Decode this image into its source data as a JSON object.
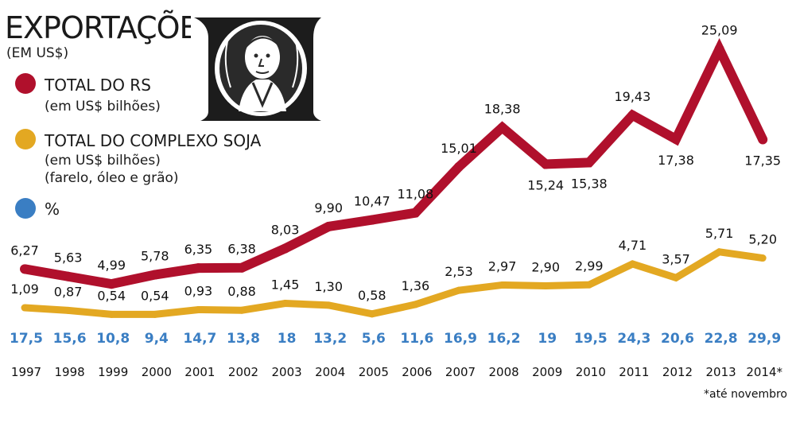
{
  "header": {
    "title": "EXPORTAÇÕES",
    "subtitle": "(EM US$)"
  },
  "legend": [
    {
      "label": "TOTAL DO RS",
      "sub1": "(em US$ bilhões)",
      "sub2": "",
      "color": "#b0102c"
    },
    {
      "label": "TOTAL DO COMPLEXO SOJA",
      "sub1": "(em US$ bilhões)",
      "sub2": "(farelo, óleo e grão)",
      "color": "#e3a822"
    },
    {
      "label": "%",
      "sub1": "",
      "sub2": "",
      "color": "#3a7ec3"
    }
  ],
  "illustration": "dollar-bill-portrait",
  "footnote": "*até novembro",
  "chart_data": {
    "type": "line",
    "categories": [
      "1997",
      "1998",
      "1999",
      "2000",
      "2001",
      "2002",
      "2003",
      "2004",
      "2005",
      "2006",
      "2007",
      "2008",
      "2009",
      "2010",
      "2011",
      "2012",
      "2013",
      "2014*"
    ],
    "series": [
      {
        "name": "TOTAL DO RS",
        "color": "#b0102c",
        "values": [
          6.27,
          5.63,
          4.99,
          5.78,
          6.35,
          6.38,
          8.03,
          9.9,
          10.47,
          11.08,
          15.01,
          18.38,
          15.24,
          15.38,
          19.43,
          17.38,
          25.09,
          17.35
        ],
        "labels": [
          "6,27",
          "5,63",
          "4,99",
          "5,78",
          "6,35",
          "6,38",
          "8,03",
          "9,90",
          "10,47",
          "11,08",
          "15,01",
          "18,38",
          "15,24",
          "15,38",
          "19,43",
          "17,38",
          "25,09",
          "17,35"
        ]
      },
      {
        "name": "TOTAL DO COMPLEXO SOJA",
        "color": "#e3a822",
        "values": [
          1.09,
          0.87,
          0.54,
          0.54,
          0.93,
          0.88,
          1.45,
          1.3,
          0.58,
          1.36,
          2.53,
          2.97,
          2.9,
          2.99,
          4.71,
          3.57,
          5.71,
          5.2
        ],
        "labels": [
          "1,09",
          "0,87",
          "0,54",
          "0,54",
          "0,93",
          "0,88",
          "1,45",
          "1,30",
          "0,58",
          "1,36",
          "2,53",
          "2,97",
          "2,90",
          "2,99",
          "4,71",
          "3,57",
          "5,71",
          "5,20"
        ]
      },
      {
        "name": "%",
        "color": "#3a7ec3",
        "values": [
          17.5,
          15.6,
          10.8,
          9.4,
          14.7,
          13.8,
          18,
          13.2,
          5.6,
          11.6,
          16.9,
          16.2,
          19,
          19.5,
          24.3,
          20.6,
          22.8,
          29.9
        ],
        "labels": [
          "17,5",
          "15,6",
          "10,8",
          "9,4",
          "14,7",
          "13,8",
          "18",
          "13,2",
          "5,6",
          "11,6",
          "16,9",
          "16,2",
          "19",
          "19,5",
          "24,3",
          "20,6",
          "22,8",
          "29,9"
        ]
      }
    ]
  }
}
